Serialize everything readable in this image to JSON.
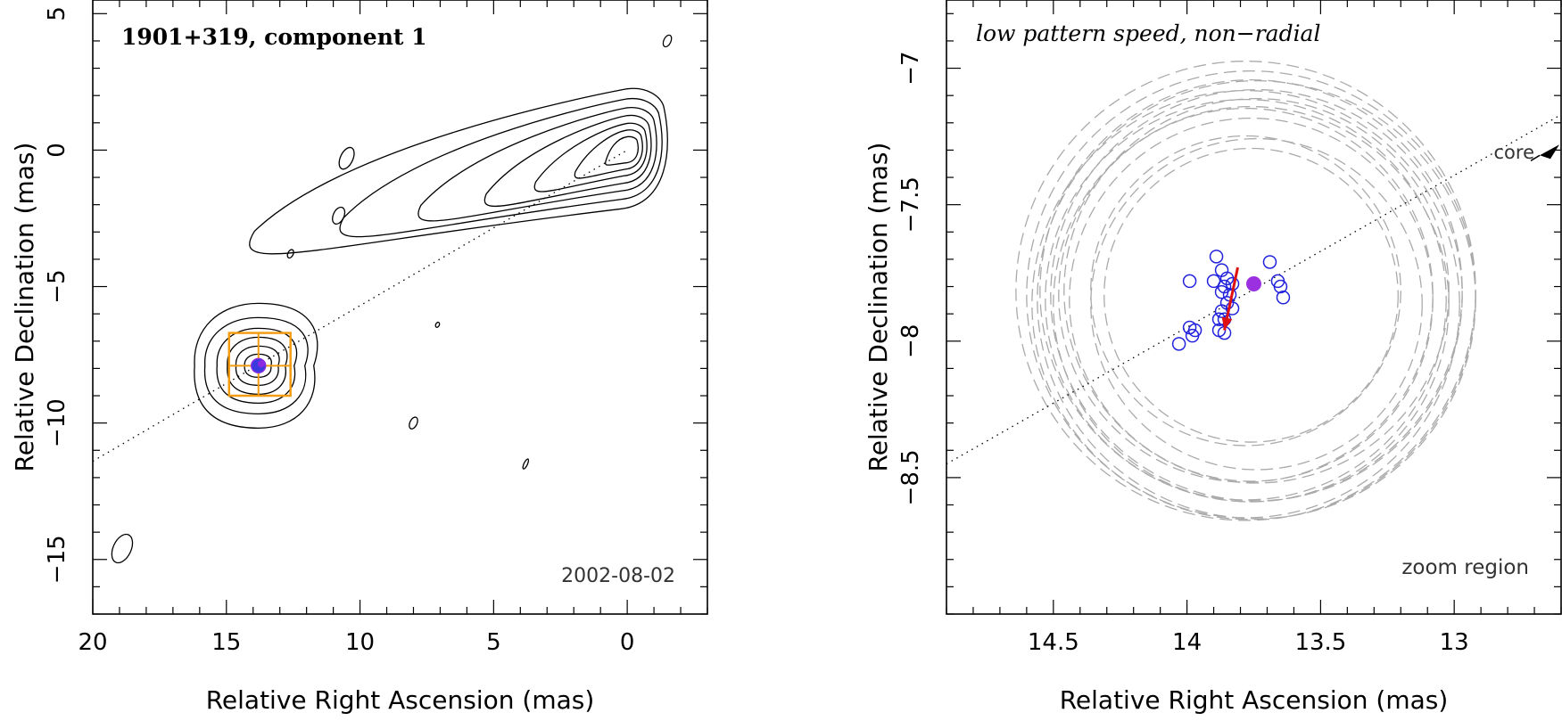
{
  "chart_data": [
    {
      "type": "scatter",
      "title": "1901+319, component 1",
      "epoch": "2002-08-02",
      "xlabel": "Relative Right Ascension (mas)",
      "ylabel": "Relative Declination (mas)",
      "xlim": [
        20,
        -3
      ],
      "ylim": [
        -17,
        5.5
      ],
      "xticks": [
        20,
        15,
        10,
        5,
        0
      ],
      "yticks": [
        5,
        0,
        -5,
        -10,
        -15
      ],
      "jet_axis_line": [
        [
          20,
          -11.4
        ],
        [
          0,
          0
        ]
      ],
      "contour_peak": [
        0,
        0
      ],
      "component": {
        "x": 13.8,
        "y": -7.9
      },
      "zoom_box": {
        "x_range": [
          14.9,
          12.6
        ],
        "y_range": [
          -6.7,
          -9.0
        ]
      }
    },
    {
      "type": "scatter",
      "title": "low pattern speed, non−radial",
      "xlabel": "Relative Right Ascension (mas)",
      "ylabel": "Relative Declination (mas)",
      "xlim": [
        14.9,
        12.6
      ],
      "ylim": [
        -9.0,
        -6.75
      ],
      "xticks": [
        14.5,
        14,
        13.5,
        13
      ],
      "yticks": [
        -7,
        -7.5,
        -8,
        -8.5
      ],
      "annotations": {
        "core": "core",
        "zoom": "zoom region"
      },
      "core_direction_line": [
        [
          14.9,
          -8.45
        ],
        [
          12.6,
          -7.17
        ]
      ],
      "measured_positions": [
        {
          "x": 13.89,
          "y": -7.69
        },
        {
          "x": 13.69,
          "y": -7.71
        },
        {
          "x": 13.87,
          "y": -7.74
        },
        {
          "x": 13.99,
          "y": -7.78
        },
        {
          "x": 13.9,
          "y": -7.78
        },
        {
          "x": 13.85,
          "y": -7.77
        },
        {
          "x": 13.83,
          "y": -7.79
        },
        {
          "x": 13.66,
          "y": -7.78
        },
        {
          "x": 13.86,
          "y": -7.8
        },
        {
          "x": 13.65,
          "y": -7.8
        },
        {
          "x": 13.87,
          "y": -7.82
        },
        {
          "x": 13.84,
          "y": -7.83
        },
        {
          "x": 13.64,
          "y": -7.84
        },
        {
          "x": 13.85,
          "y": -7.86
        },
        {
          "x": 13.83,
          "y": -7.88
        },
        {
          "x": 13.87,
          "y": -7.89
        },
        {
          "x": 13.86,
          "y": -7.92
        },
        {
          "x": 13.88,
          "y": -7.92
        },
        {
          "x": 13.99,
          "y": -7.95
        },
        {
          "x": 13.97,
          "y": -7.96
        },
        {
          "x": 13.98,
          "y": -7.98
        },
        {
          "x": 13.86,
          "y": -7.97
        },
        {
          "x": 13.88,
          "y": -7.96
        },
        {
          "x": 14.03,
          "y": -8.01
        }
      ],
      "mean_position": {
        "x": 13.75,
        "y": -7.79
      },
      "motion_vector": {
        "from": [
          13.81,
          -7.73
        ],
        "to": [
          13.86,
          -7.96
        ]
      },
      "model_ring_radii_mas": [
        0.86,
        0.84,
        0.82,
        0.8,
        0.79,
        0.77,
        0.75,
        0.74,
        0.72,
        0.7,
        0.68,
        0.62,
        0.58,
        0.55
      ],
      "model_ring_center": {
        "x": 13.76,
        "y": -7.84
      }
    }
  ]
}
